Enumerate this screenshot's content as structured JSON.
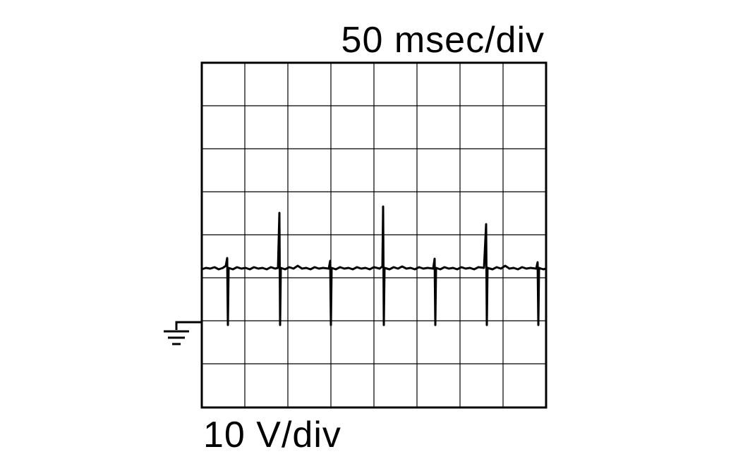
{
  "time_scale": "50 msec/div",
  "voltage_scale": "10 V/div"
}
